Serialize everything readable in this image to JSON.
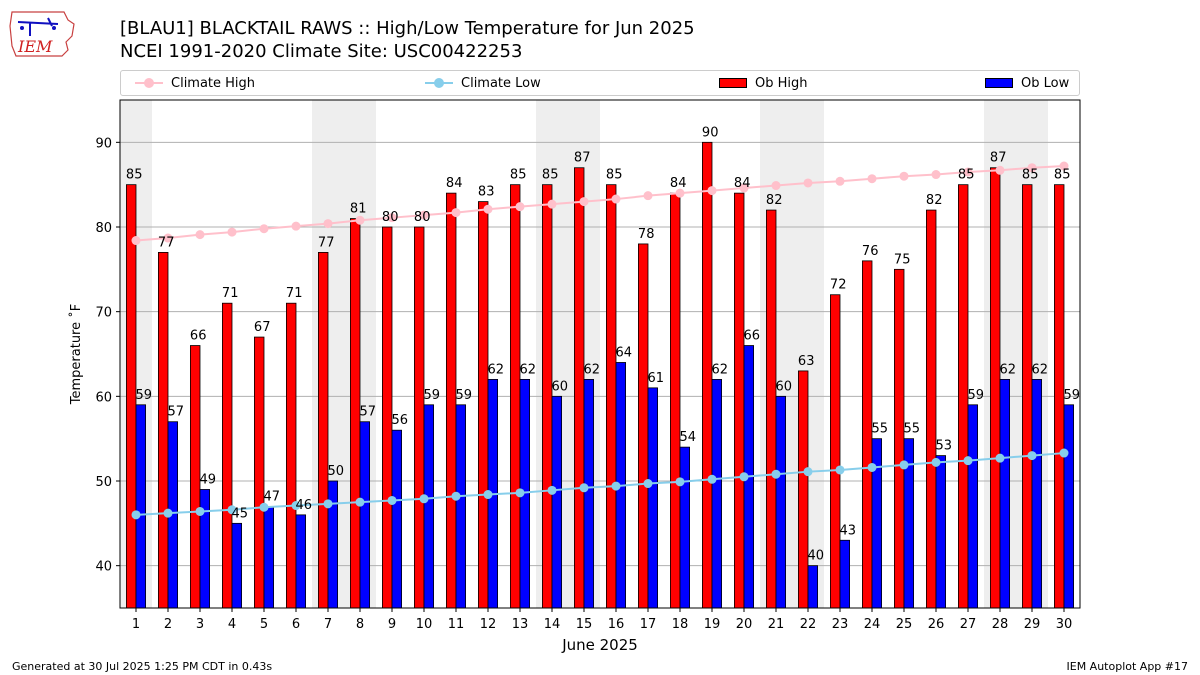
{
  "header": {
    "logo_text": "IEM",
    "title_line1": "[BLAU1] BLACKTAIL RAWS :: High/Low Temperature for Jun 2025",
    "title_line2": "NCEI 1991-2020 Climate Site: USC00422253"
  },
  "legend": {
    "climate_high": "Climate High",
    "climate_low": "Climate Low",
    "ob_high": "Ob High",
    "ob_low": "Ob Low"
  },
  "colors": {
    "climate_high": "#ffc0cb",
    "climate_low": "#87ceeb",
    "ob_high": "#ff0000",
    "ob_low": "#0000ff",
    "weekend_band": "#eeeeee",
    "grid": "#b0b0b0"
  },
  "chart_data": {
    "type": "bar",
    "xlabel": "June 2025",
    "ylabel": "Temperature ˚F",
    "ylim": [
      35,
      95
    ],
    "yticks": [
      40,
      50,
      60,
      70,
      80,
      90
    ],
    "grid": true,
    "legend_position": "top",
    "categories": [
      "1",
      "2",
      "3",
      "4",
      "5",
      "6",
      "7",
      "8",
      "9",
      "10",
      "11",
      "12",
      "13",
      "14",
      "15",
      "16",
      "17",
      "18",
      "19",
      "20",
      "21",
      "22",
      "23",
      "24",
      "25",
      "26",
      "27",
      "28",
      "29",
      "30"
    ],
    "shaded_days": [
      1,
      7,
      8,
      14,
      15,
      21,
      22,
      28,
      29
    ],
    "series": [
      {
        "name": "Ob High",
        "kind": "bar",
        "values": [
          85,
          77,
          66,
          71,
          67,
          71,
          77,
          81,
          80,
          80,
          84,
          83,
          85,
          85,
          87,
          85,
          78,
          84,
          90,
          84,
          82,
          63,
          72,
          76,
          75,
          82,
          85,
          87,
          85,
          85
        ]
      },
      {
        "name": "Ob Low",
        "kind": "bar",
        "values": [
          59,
          57,
          49,
          45,
          47,
          46,
          50,
          57,
          56,
          59,
          59,
          62,
          62,
          60,
          62,
          64,
          61,
          54,
          62,
          66,
          60,
          40,
          43,
          55,
          55,
          53,
          59,
          62,
          62,
          59
        ]
      },
      {
        "name": "Climate High",
        "kind": "line",
        "values": [
          78.4,
          78.7,
          79.1,
          79.4,
          79.8,
          80.1,
          80.4,
          80.8,
          81.1,
          81.4,
          81.7,
          82.1,
          82.4,
          82.7,
          83.0,
          83.3,
          83.7,
          84.0,
          84.3,
          84.6,
          84.9,
          85.2,
          85.4,
          85.7,
          86.0,
          86.2,
          86.5,
          86.7,
          87.0,
          87.2
        ]
      },
      {
        "name": "Climate Low",
        "kind": "line",
        "values": [
          46.0,
          46.2,
          46.4,
          46.6,
          46.9,
          47.1,
          47.3,
          47.5,
          47.7,
          47.9,
          48.2,
          48.4,
          48.6,
          48.9,
          49.2,
          49.4,
          49.7,
          49.9,
          50.2,
          50.5,
          50.8,
          51.1,
          51.3,
          51.6,
          51.9,
          52.2,
          52.4,
          52.7,
          53.0,
          53.3
        ]
      }
    ]
  },
  "footer": {
    "generated": "Generated at 30 Jul 2025 1:25 PM CDT in 0.43s",
    "app": "IEM Autoplot App #17"
  }
}
